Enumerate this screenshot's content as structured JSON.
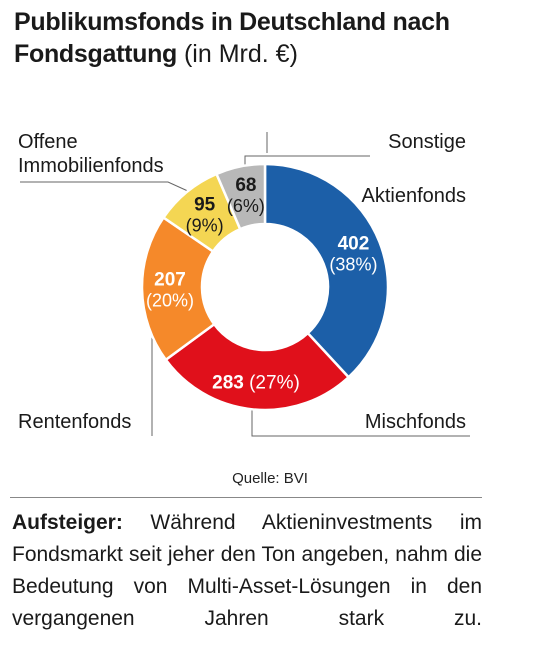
{
  "title": {
    "bold": "Publikumsfonds in Deutschland nach Fondsgattung",
    "unit": "(in Mrd. €)"
  },
  "source": "Quelle: BVI",
  "caption": {
    "lead": "Aufsteiger:",
    "text": "Während Aktieninvestments im Fondsmarkt seit jeher den Ton angeben, nahm die Bedeutung von Multi-Asset-Lösungen in den vergangenen Jahren stark zu."
  },
  "chart_data": {
    "type": "pie",
    "title": "Publikumsfonds in Deutschland nach Fondsgattung",
    "unit": "Mrd. €",
    "categories": [
      "Aktienfonds",
      "Mischfonds",
      "Rentenfonds",
      "Offene Immobilienfonds",
      "Sonstige"
    ],
    "values": [
      402,
      283,
      207,
      95,
      68
    ],
    "percent_labels": [
      "(38%)",
      "(27%)",
      "(20%)",
      "(9%)",
      "(6%)"
    ],
    "colors": [
      "#1c5fa8",
      "#e0101b",
      "#f5892a",
      "#f4d653",
      "#b8b8b8"
    ],
    "label_colors": [
      "#ffffff",
      "#ffffff",
      "#ffffff",
      "#1a1a1a",
      "#1a1a1a"
    ],
    "donut": true,
    "start": "top, clockwise"
  }
}
